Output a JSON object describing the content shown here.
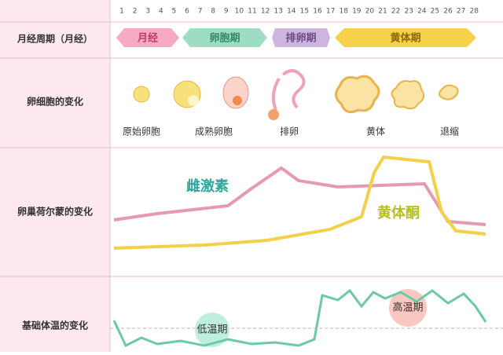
{
  "header": {
    "days": [
      "1",
      "2",
      "3",
      "4",
      "5",
      "6",
      "7",
      "8",
      "9",
      "10",
      "11",
      "12",
      "13",
      "14",
      "15",
      "16",
      "17",
      "18",
      "19",
      "20",
      "21",
      "22",
      "23",
      "24",
      "25",
      "26",
      "27",
      "28"
    ]
  },
  "rows": {
    "cycle": "月经周期（月经）",
    "egg": "卵细胞的变化",
    "hormone": "卵巢荷尔蒙的变化",
    "temperature": "基础体温的变化"
  },
  "phases": [
    "月经",
    "卵胞期",
    "排卵期",
    "黄体期"
  ],
  "egg_stages": [
    "原始卵胞",
    "成熟卵胞",
    "排卵",
    "黄体",
    "退缩"
  ],
  "hormones": {
    "estrogen": "雌激素",
    "progesterone": "黄体酮"
  },
  "temperature": {
    "low": "低温期",
    "high": "高温期"
  }
}
